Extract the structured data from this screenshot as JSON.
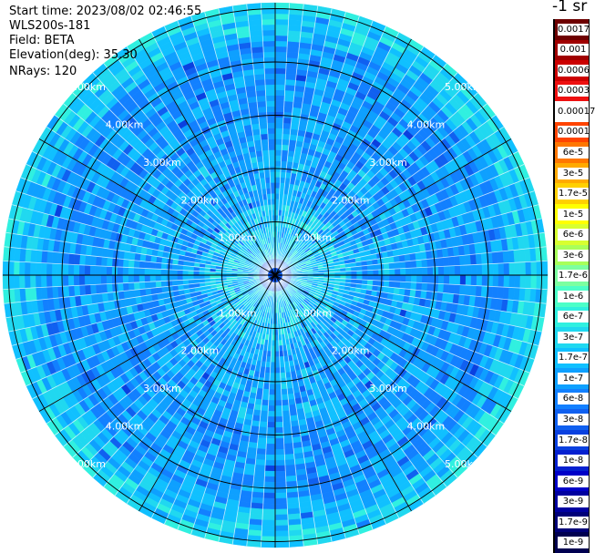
{
  "header": {
    "start_time": "Start time: 2023/08/02 02:46:55",
    "instrument": "WLS200s-181",
    "field": "Field: BETA",
    "elevation": "Elevation(deg): 35.30",
    "nrays": "NRays: 120"
  },
  "colorbar": {
    "title": "-1 sr",
    "labels": [
      "0.0017",
      "0.001",
      "0.0006",
      "0.0003",
      "0.00017",
      "0.0001",
      "6e-5",
      "3e-5",
      "1.7e-5",
      "1e-5",
      "6e-6",
      "3e-6",
      "1.7e-6",
      "1e-6",
      "6e-7",
      "3e-7",
      "1.7e-7",
      "1e-7",
      "6e-8",
      "3e-8",
      "1.7e-8",
      "1e-8",
      "6e-9",
      "3e-9",
      "1.7e-9",
      "1e-9"
    ],
    "colors": [
      "#6e0000",
      "#a00000",
      "#cc0000",
      "#ee1010",
      "#ffffff",
      "#ff4400",
      "#ff7700",
      "#ffaa00",
      "#ffd000",
      "#ffff00",
      "#d8ff30",
      "#a8ff5a",
      "#7cffa0",
      "#4cffc8",
      "#30f0e0",
      "#20d8f0",
      "#10c0ff",
      "#0ea0ff",
      "#1280ff",
      "#1060f0",
      "#0a40e0",
      "#0520d0",
      "#0000c8",
      "#0000a0",
      "#000078",
      "#000050"
    ]
  },
  "chart_data": {
    "type": "heatmap",
    "projection": "polar",
    "field": "BETA",
    "elevation_deg": 35.3,
    "n_rays": 120,
    "range_rings_km": [
      1,
      2,
      3,
      4,
      5
    ],
    "range_labels": [
      "1.00km",
      "2.00km",
      "3.00km",
      "4.00km",
      "5.00km"
    ],
    "radial_lines": 12,
    "color_scale": "log",
    "value_range": [
      1e-09,
      0.0017
    ],
    "dominant_values": "mostly 1e-8 to 1e-6; near center ~3e-8 to 1e-7, outer edge ~3e-7 to 1e-6"
  }
}
